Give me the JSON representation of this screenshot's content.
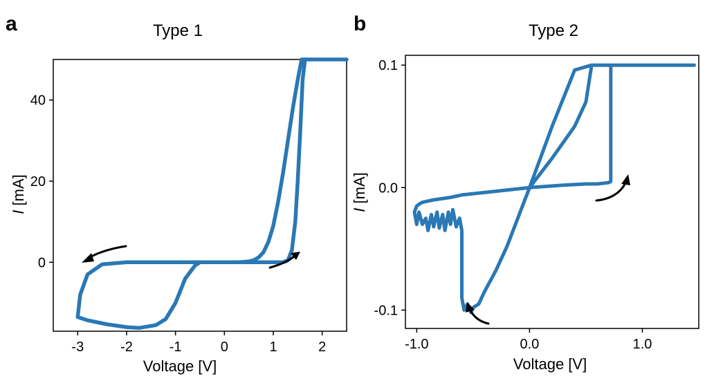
{
  "colors": {
    "series": "#2a78b5",
    "axis": "#000000",
    "background": "#ffffff"
  },
  "chart_data": [
    {
      "panel": "a",
      "type": "line",
      "title": "Type 1",
      "xlabel": "Voltage [V]",
      "ylabel_italic": "I",
      "ylabel_unit": "[mA]",
      "xlim": [
        -3.5,
        2.5
      ],
      "ylim": [
        -17,
        50
      ],
      "xticks": [
        -3,
        -2,
        -1,
        0,
        1,
        2
      ],
      "xtick_labels": [
        "-3",
        "-2",
        "-1",
        "0",
        "1",
        "2"
      ],
      "yticks": [
        0,
        20,
        40
      ],
      "ytick_labels": [
        "0",
        "20",
        "40"
      ],
      "grid": false,
      "series": [
        {
          "x": [
            1.2,
            1.3,
            1.38,
            1.45,
            1.5,
            1.55,
            1.6,
            1.65,
            2.5,
            1.58,
            1.5,
            1.4,
            1.3,
            1.2,
            1.1,
            1.0,
            0.9,
            0.8,
            0.7,
            0.6,
            0.5,
            0.3,
            0.0,
            -1.0,
            -2.0,
            -2.5,
            -2.8,
            -2.95,
            -3.0,
            -2.8,
            -2.4,
            -2.0,
            -1.75,
            -1.4,
            -1.2,
            -1.0,
            -0.8,
            -0.6,
            -0.5,
            0.0,
            0.5,
            1.0,
            1.2
          ],
          "y": [
            0,
            0.5,
            3,
            10,
            20,
            32,
            45,
            50,
            50,
            50,
            45,
            38,
            30,
            22,
            15,
            9,
            5,
            2.5,
            1.2,
            0.5,
            0.2,
            0,
            0,
            0,
            0,
            -0.5,
            -3,
            -8,
            -13.5,
            -14.3,
            -15.3,
            -16,
            -16.2,
            -15.5,
            -14,
            -10,
            -4,
            -0.8,
            0,
            0,
            0,
            0,
            0
          ]
        }
      ],
      "arrows": [
        "forward sweep (bottom-right)",
        "reverse sweep (left)"
      ]
    },
    {
      "panel": "b",
      "type": "line",
      "title": "Type 2",
      "xlabel": "Voltage [V]",
      "ylabel_italic": "I",
      "ylabel_unit": "[mA]",
      "xlim": [
        -1.1,
        1.5
      ],
      "ylim": [
        -0.115,
        0.108
      ],
      "xticks": [
        -1.0,
        0.0,
        1.0
      ],
      "xtick_labels": [
        "-1.0",
        "0.0",
        "1.0"
      ],
      "yticks": [
        -0.1,
        0.0,
        0.1
      ],
      "ytick_labels": [
        "-0.1",
        "0.0",
        "0.1"
      ],
      "grid": false,
      "series": [
        {
          "x": [
            0.0,
            0.2,
            0.4,
            0.5,
            0.55,
            0.72,
            0.72,
            0.72,
            0.7,
            0.6,
            0.5,
            0.3,
            0.0,
            -0.3,
            -0.6,
            -0.7,
            -0.85,
            -0.95,
            -0.97,
            -1.0,
            -1.02,
            -1.0,
            -0.98,
            -0.95,
            -0.92,
            -0.9,
            -0.87,
            -0.85,
            -0.82,
            -0.8,
            -0.77,
            -0.75,
            -0.72,
            -0.7,
            -0.68,
            -0.65,
            -0.62,
            -0.6,
            -0.6,
            -0.58,
            -0.55,
            -0.52,
            -0.5,
            -0.45,
            -0.4,
            -0.3,
            -0.2,
            -0.1,
            0.0,
            0.2,
            0.4,
            0.55,
            0.72,
            1.0,
            1.46
          ],
          "y": [
            0.0,
            0.024,
            0.05,
            0.07,
            0.1,
            0.1,
            0.06,
            0.005,
            0.004,
            0.003,
            0.003,
            0.002,
            0.0,
            -0.003,
            -0.006,
            -0.008,
            -0.01,
            -0.012,
            -0.013,
            -0.015,
            -0.02,
            -0.03,
            -0.02,
            -0.03,
            -0.025,
            -0.035,
            -0.022,
            -0.032,
            -0.02,
            -0.033,
            -0.022,
            -0.035,
            -0.02,
            -0.03,
            -0.018,
            -0.032,
            -0.025,
            -0.035,
            -0.09,
            -0.1,
            -0.095,
            -0.102,
            -0.098,
            -0.095,
            -0.085,
            -0.068,
            -0.048,
            -0.024,
            0.0,
            0.05,
            0.096,
            0.1,
            0.1,
            0.1,
            0.1
          ]
        }
      ],
      "arrows": [
        "forward sweep (right)",
        "reverse sweep (bottom-left)"
      ]
    }
  ]
}
